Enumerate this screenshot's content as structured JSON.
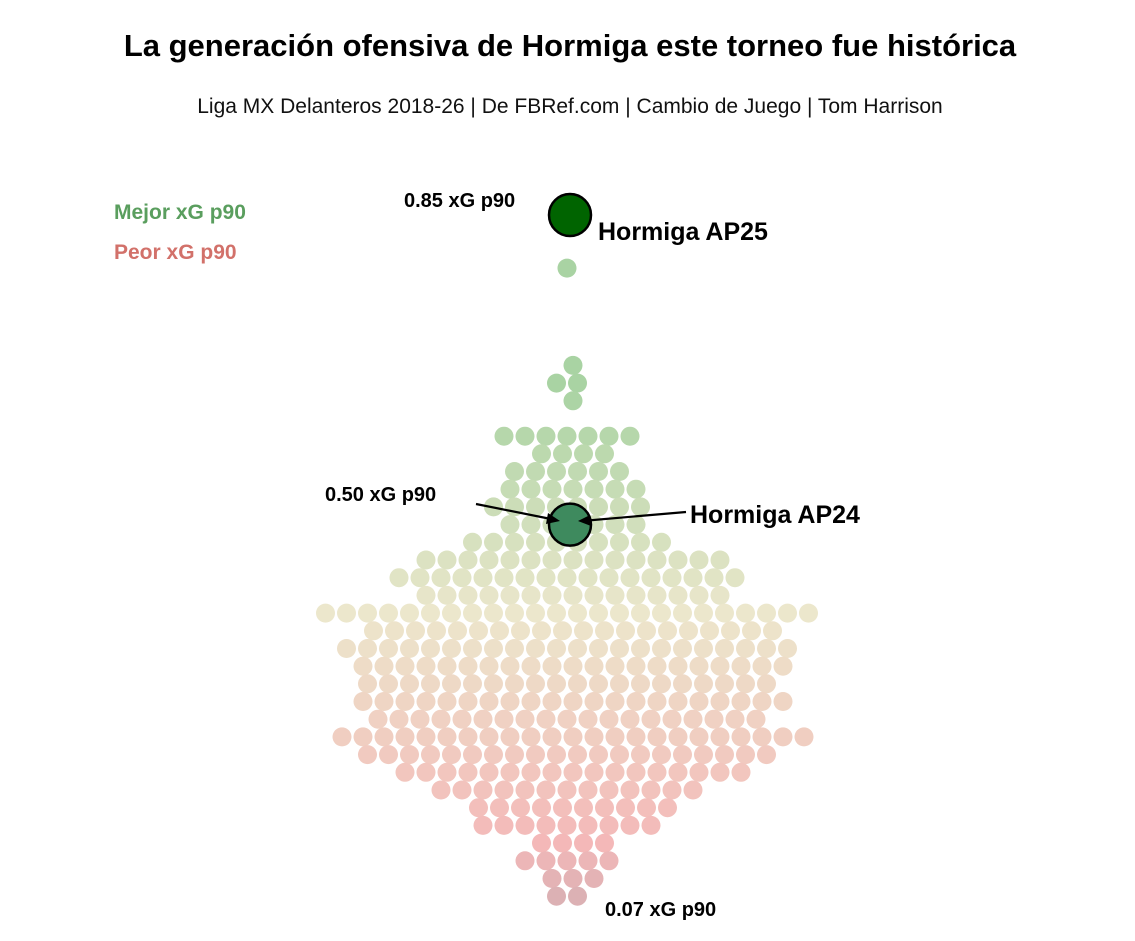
{
  "chart_data": {
    "type": "scatter",
    "variant": "beeswarm",
    "title": "La generación ofensiva de Hormiga este torneo fue histórica",
    "subtitle": "Liga MX Delanteros 2018-26 | De FBRef.com | Cambio de Juego | Tom Harrison",
    "metric": "xG p90",
    "ylim": [
      0.03,
      0.88
    ],
    "legend": {
      "placement": "top-left",
      "entries": [
        {
          "label": "Mejor xG p90",
          "color": "#5a9e5e"
        },
        {
          "label": "Peor xG p90",
          "color": "#d2716a"
        }
      ]
    },
    "color_scale": {
      "low": "#f4b8b8",
      "mid": "#ece7cc",
      "high": "#a9d3a3",
      "lowest": "#d8b0b3"
    },
    "highlights": [
      {
        "name": "Hormiga AP25",
        "value": 0.85,
        "value_label": "0.85 xG p90",
        "color": "#006400"
      },
      {
        "name": "Hormiga AP24",
        "value": 0.5,
        "value_label": "0.50 xG p90",
        "color": "#3e8a5e"
      }
    ],
    "min_annotation": {
      "value": 0.07,
      "label": "0.07 xG p90"
    },
    "rows": [
      {
        "value": 0.79,
        "count": 1
      },
      {
        "value": 0.68,
        "count": 1
      },
      {
        "value": 0.66,
        "count": 2
      },
      {
        "value": 0.64,
        "count": 1
      },
      {
        "value": 0.6,
        "count": 7
      },
      {
        "value": 0.58,
        "count": 4
      },
      {
        "value": 0.56,
        "count": 6
      },
      {
        "value": 0.54,
        "count": 7
      },
      {
        "value": 0.52,
        "count": 8
      },
      {
        "value": 0.5,
        "count": 7
      },
      {
        "value": 0.48,
        "count": 10
      },
      {
        "value": 0.46,
        "count": 15
      },
      {
        "value": 0.44,
        "count": 17
      },
      {
        "value": 0.42,
        "count": 15
      },
      {
        "value": 0.4,
        "count": 24
      },
      {
        "value": 0.38,
        "count": 20
      },
      {
        "value": 0.36,
        "count": 22
      },
      {
        "value": 0.34,
        "count": 21
      },
      {
        "value": 0.32,
        "count": 20
      },
      {
        "value": 0.3,
        "count": 21
      },
      {
        "value": 0.28,
        "count": 19
      },
      {
        "value": 0.26,
        "count": 23
      },
      {
        "value": 0.24,
        "count": 20
      },
      {
        "value": 0.22,
        "count": 17
      },
      {
        "value": 0.2,
        "count": 13
      },
      {
        "value": 0.18,
        "count": 10
      },
      {
        "value": 0.16,
        "count": 9
      },
      {
        "value": 0.14,
        "count": 4
      },
      {
        "value": 0.12,
        "count": 5
      },
      {
        "value": 0.1,
        "count": 3
      },
      {
        "value": 0.08,
        "count": 2
      }
    ]
  }
}
